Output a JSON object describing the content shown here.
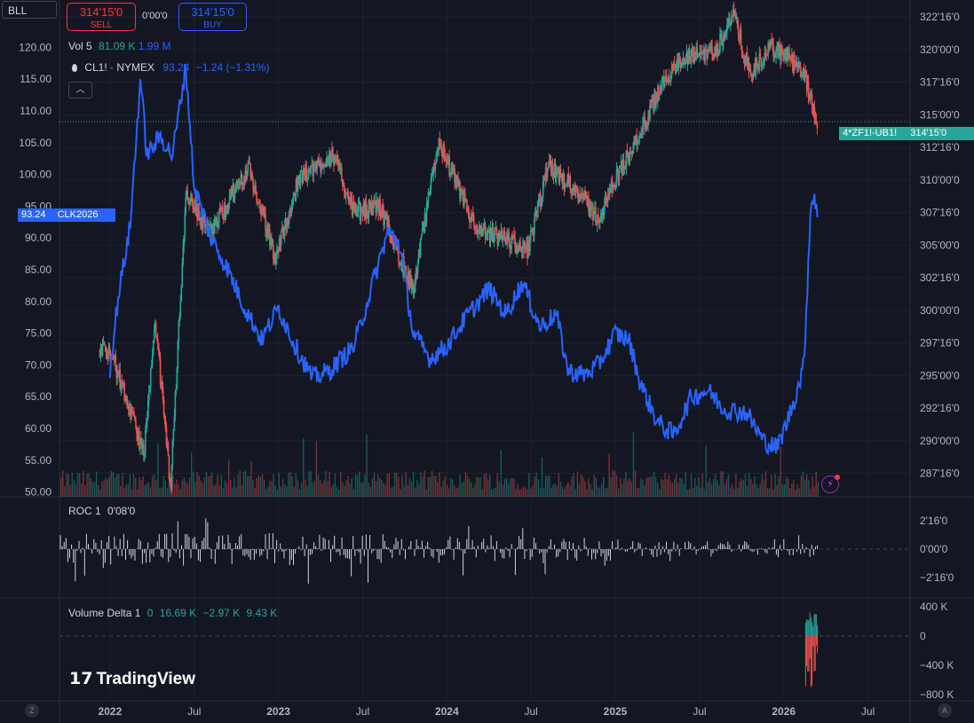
{
  "toolbar": {
    "symbol": "BLL",
    "sell_price": "314'15'0",
    "sell_label": "SELL",
    "spread": "0'00'0",
    "buy_price": "314'15'0",
    "buy_label": "BUY"
  },
  "legend": {
    "vol_label": "Vol 5",
    "vol_value1": "81.09 K",
    "vol_value2": "1.99 M",
    "overlay_symbol": "CL1! · NYMEX",
    "overlay_value": "93.24",
    "overlay_change": "−1.24 (−1.31%)",
    "collapse_icon": "chevron-up-icon",
    "drop_icon": "oil-drop-icon"
  },
  "tags": {
    "left_value": "93.24",
    "left_symbol": "CLK2026",
    "right_symbol": "4*ZF1!-UB1!",
    "right_value": "314'15'0"
  },
  "panes": {
    "roc": {
      "label": "ROC 1",
      "value": "0'08'0"
    },
    "delta": {
      "label": "Volume Delta 1",
      "v0": "0",
      "v1": "16.69 K",
      "v2": "−2.97 K",
      "v3": "9.43 K"
    }
  },
  "brand": {
    "name": "TradingView"
  },
  "corner": {
    "left": "Z",
    "right": "A"
  },
  "colors": {
    "background": "#131722",
    "grid": "#1e222d",
    "up": "#26a69a",
    "down": "#ef5350",
    "overlay_line": "#2962ff",
    "roc_line": "#d1d4dc",
    "text": "#d1d4dc",
    "axis_text": "#b2b5be"
  },
  "chart_data": [
    {
      "type": "candlestick",
      "series": [
        {
          "name": "4*ZF1!-UB1!"
        }
      ],
      "x_ticks": [
        "2022",
        "Jul",
        "2023",
        "Jul",
        "2024",
        "Jul",
        "2025",
        "Jul",
        "2026",
        "Jul"
      ],
      "y_right_ticks": [
        "322'16'0",
        "320'00'0",
        "317'16'0",
        "315'00'0",
        "312'16'0",
        "310'00'0",
        "307'16'0",
        "305'00'0",
        "302'16'0",
        "300'00'0",
        "297'16'0",
        "295'00'0",
        "292'16'0",
        "290'00'0",
        "287'16'0"
      ],
      "y_right_range": [
        285.7,
        323.8
      ],
      "last_value": 314.47,
      "points": [
        [
          2022.0,
          297
        ],
        [
          2022.2,
          289
        ],
        [
          2022.27,
          299
        ],
        [
          2022.36,
          286.5
        ],
        [
          2022.45,
          309
        ],
        [
          2022.6,
          306
        ],
        [
          2022.82,
          311
        ],
        [
          2022.98,
          304
        ],
        [
          2023.12,
          310
        ],
        [
          2023.32,
          312
        ],
        [
          2023.45,
          307.5
        ],
        [
          2023.6,
          308
        ],
        [
          2023.8,
          301.5
        ],
        [
          2023.95,
          313
        ],
        [
          2024.08,
          309
        ],
        [
          2024.18,
          306
        ],
        [
          2024.35,
          305.5
        ],
        [
          2024.48,
          304.5
        ],
        [
          2024.6,
          311
        ],
        [
          2024.75,
          309.5
        ],
        [
          2024.9,
          307
        ],
        [
          2025.0,
          310
        ],
        [
          2025.2,
          315
        ],
        [
          2025.3,
          318
        ],
        [
          2025.45,
          319.5
        ],
        [
          2025.6,
          320
        ],
        [
          2025.7,
          322.8
        ],
        [
          2025.8,
          318
        ],
        [
          2025.92,
          320.2
        ],
        [
          2026.02,
          319.5
        ],
        [
          2026.12,
          318
        ],
        [
          2026.2,
          314.47
        ]
      ]
    },
    {
      "type": "line",
      "series": [
        {
          "name": "CL1! · NYMEX"
        }
      ],
      "y_left_ticks": [
        "120.00",
        "115.00",
        "110.00",
        "105.00",
        "100.00",
        "95.00",
        "90.00",
        "85.00",
        "80.00",
        "75.00",
        "70.00",
        "65.00",
        "60.00",
        "55.00",
        "50.00"
      ],
      "y_left_range": [
        49.25,
        127.46
      ],
      "last_value": 93.24,
      "points": [
        [
          2022.0,
          69.5
        ],
        [
          2022.05,
          81
        ],
        [
          2022.12,
          92
        ],
        [
          2022.18,
          115
        ],
        [
          2022.22,
          103
        ],
        [
          2022.3,
          106
        ],
        [
          2022.37,
          103
        ],
        [
          2022.45,
          117
        ],
        [
          2022.5,
          98
        ],
        [
          2022.6,
          90
        ],
        [
          2022.7,
          85
        ],
        [
          2022.8,
          79
        ],
        [
          2022.9,
          74
        ],
        [
          2023.0,
          79
        ],
        [
          2023.1,
          73
        ],
        [
          2023.2,
          68
        ],
        [
          2023.3,
          69
        ],
        [
          2023.45,
          73
        ],
        [
          2023.55,
          82
        ],
        [
          2023.65,
          91
        ],
        [
          2023.72,
          89
        ],
        [
          2023.8,
          75
        ],
        [
          2023.9,
          71
        ],
        [
          2024.0,
          73
        ],
        [
          2024.1,
          77
        ],
        [
          2024.25,
          82
        ],
        [
          2024.35,
          78
        ],
        [
          2024.45,
          83
        ],
        [
          2024.55,
          76
        ],
        [
          2024.65,
          78
        ],
        [
          2024.72,
          69
        ],
        [
          2024.82,
          68.5
        ],
        [
          2024.9,
          70
        ],
        [
          2025.0,
          75
        ],
        [
          2025.08,
          74
        ],
        [
          2025.15,
          67
        ],
        [
          2025.25,
          61
        ],
        [
          2025.35,
          59
        ],
        [
          2025.45,
          65
        ],
        [
          2025.55,
          66
        ],
        [
          2025.65,
          63
        ],
        [
          2025.78,
          62.5
        ],
        [
          2025.88,
          58
        ],
        [
          2025.96,
          57
        ],
        [
          2026.02,
          61
        ],
        [
          2026.08,
          66
        ],
        [
          2026.12,
          70
        ],
        [
          2026.16,
          95
        ],
        [
          2026.18,
          97
        ],
        [
          2026.2,
          93.24
        ]
      ]
    },
    {
      "type": "bar",
      "name": "Vol 5",
      "values_label": [
        "81.09 K",
        "1.99 M"
      ]
    },
    {
      "type": "bar",
      "name": "ROC 1",
      "y_ticks": [
        "2'16'0",
        "0'00'0",
        "−2'16'0"
      ],
      "last_value": "0'08'0"
    },
    {
      "type": "bar",
      "name": "Volume Delta 1",
      "y_ticks": [
        "400 K",
        "0",
        "−400 K",
        "−800 K"
      ]
    }
  ]
}
